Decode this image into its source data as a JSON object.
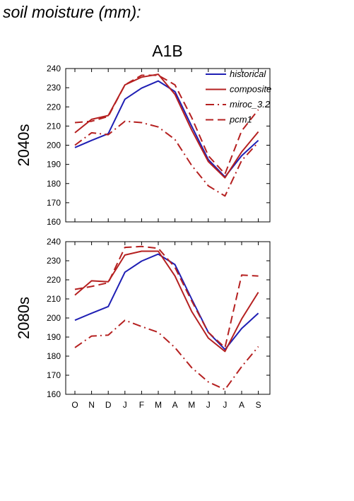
{
  "page": {
    "title": "soil moisture (mm):"
  },
  "chart_data": {
    "type": "line",
    "title": "A1B",
    "months": [
      "O",
      "N",
      "D",
      "J",
      "F",
      "M",
      "A",
      "M",
      "J",
      "J",
      "A",
      "S"
    ],
    "yticks": [
      160,
      170,
      180,
      190,
      200,
      210,
      220,
      230,
      240
    ],
    "ylim": [
      160,
      240
    ],
    "grid": false,
    "legend_position": "top-right",
    "series_styles": [
      {
        "name": "historical",
        "color": "#1f1fb4",
        "dash": ""
      },
      {
        "name": "composite",
        "color": "#b52020",
        "dash": ""
      },
      {
        "name": "miroc_3.2",
        "color": "#b52020",
        "dash": "12 5 2 5"
      },
      {
        "name": "pcm1",
        "color": "#b52020",
        "dash": "11 6"
      }
    ],
    "panels": [
      {
        "label": "2040s",
        "series": [
          {
            "name": "historical",
            "values": [
              198.8,
              202.5,
              206.0,
              224.0,
              229.8,
              233.5,
              228.0,
              210.0,
              192.5,
              183.5,
              194.5,
              202.5
            ]
          },
          {
            "name": "composite",
            "values": [
              206.5,
              213.5,
              215.5,
              231.5,
              235.5,
              237.0,
              226.5,
              208.0,
              191.5,
              183.0,
              196.5,
              207.0
            ]
          },
          {
            "name": "miroc_3.2",
            "values": [
              200.0,
              206.5,
              205.5,
              212.5,
              211.8,
              209.5,
              203.0,
              189.5,
              178.8,
              173.5,
              192.0,
              201.5
            ]
          },
          {
            "name": "pcm1",
            "values": [
              211.8,
              212.5,
              215.0,
              231.5,
              236.5,
              236.5,
              231.5,
              214.5,
              194.5,
              185.0,
              207.5,
              218.5
            ]
          }
        ]
      },
      {
        "label": "2080s",
        "series": [
          {
            "name": "historical",
            "values": [
              198.8,
              202.5,
              206.0,
              224.0,
              229.8,
              233.5,
              228.0,
              210.0,
              192.5,
              183.5,
              194.5,
              202.5
            ]
          },
          {
            "name": "composite",
            "values": [
              212.0,
              219.5,
              219.0,
              233.0,
              235.0,
              235.0,
              222.0,
              203.5,
              189.5,
              182.5,
              199.5,
              213.5
            ]
          },
          {
            "name": "miroc_3.2",
            "values": [
              184.5,
              190.5,
              191.0,
              198.8,
              195.5,
              192.5,
              184.5,
              174.0,
              166.5,
              162.5,
              174.5,
              185.0
            ]
          },
          {
            "name": "pcm1",
            "values": [
              215.0,
              216.5,
              218.5,
              237.0,
              237.5,
              236.5,
              226.5,
              209.0,
              192.5,
              184.5,
              222.5,
              222.0
            ]
          }
        ]
      }
    ]
  }
}
